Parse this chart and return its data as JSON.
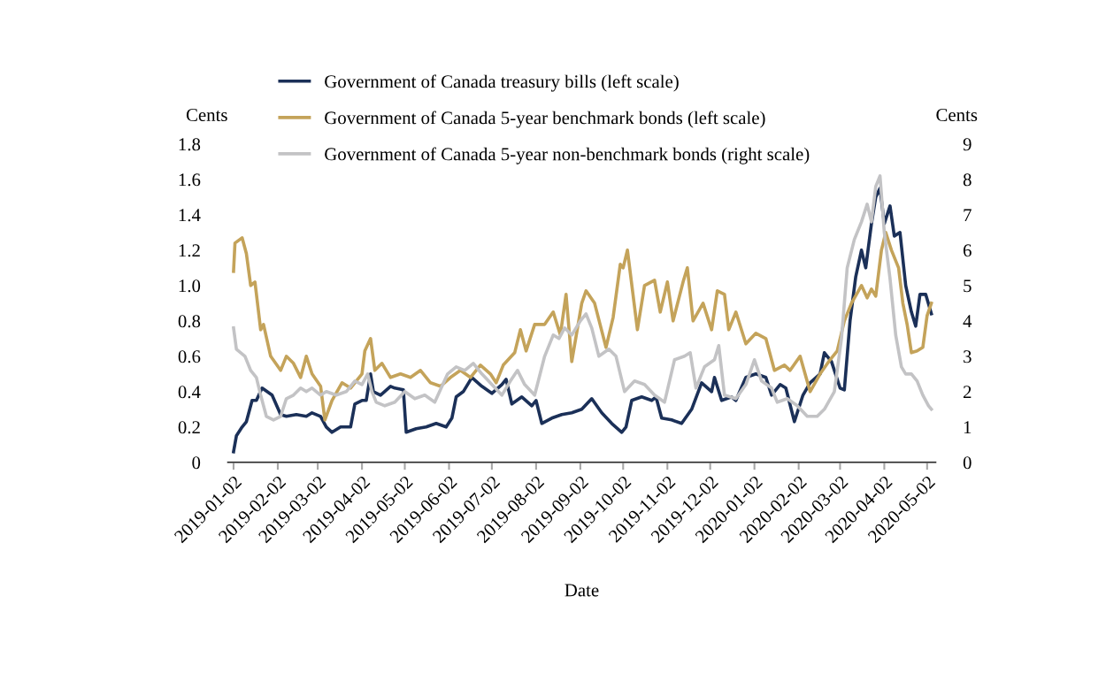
{
  "chart_data": {
    "type": "line",
    "xlabel": "Date",
    "ylabel": "Cents",
    "y2label": "Cents",
    "xlim": [
      "2018-12-29",
      "2020-05-08"
    ],
    "xticks": [
      "2019-01-02",
      "2019-02-02",
      "2019-03-02",
      "2019-04-02",
      "2019-05-02",
      "2019-06-02",
      "2019-07-02",
      "2019-08-02",
      "2019-09-02",
      "2019-10-02",
      "2019-11-02",
      "2019-12-02",
      "2020-01-02",
      "2020-02-02",
      "2020-03-02",
      "2020-04-02",
      "2020-05-02"
    ],
    "ylim": [
      0,
      1.8
    ],
    "yticks": [
      0,
      {
        "value": 0.2,
        "label": "0.2"
      },
      {
        "value": 0.4,
        "label": "0.4"
      },
      {
        "value": 0.6,
        "label": "0.6"
      },
      {
        "value": 0.8,
        "label": "0.8"
      },
      {
        "value": 1.0,
        "label": "1.0"
      },
      {
        "value": 1.2,
        "label": "1.2"
      },
      {
        "value": 1.4,
        "label": "1.4"
      },
      {
        "value": 1.6,
        "label": "1.6"
      },
      {
        "value": 1.8,
        "label": "1.8"
      }
    ],
    "y2lim": [
      0,
      9
    ],
    "y2ticks": [
      0,
      1,
      2,
      3,
      4,
      5,
      6,
      7,
      8,
      9
    ],
    "grid": false,
    "legend": "top",
    "marker": "none",
    "line_style": "solid",
    "series": [
      {
        "name": "Government of Canada treasury bills (left scale)",
        "color": "#1b3058",
        "x": [
          "2019-01-02",
          "2019-01-04",
          "2019-01-08",
          "2019-01-11",
          "2019-01-15",
          "2019-01-18",
          "2019-01-22",
          "2019-01-29",
          "2019-02-04",
          "2019-02-08",
          "2019-02-15",
          "2019-02-22",
          "2019-02-26",
          "2019-03-04",
          "2019-03-08",
          "2019-03-12",
          "2019-03-18",
          "2019-03-25",
          "2019-03-28",
          "2019-04-02",
          "2019-04-05",
          "2019-04-08",
          "2019-04-10",
          "2019-04-15",
          "2019-04-22",
          "2019-04-25",
          "2019-05-01",
          "2019-05-03",
          "2019-05-10",
          "2019-05-17",
          "2019-05-24",
          "2019-05-31",
          "2019-06-04",
          "2019-06-07",
          "2019-06-12",
          "2019-06-18",
          "2019-06-25",
          "2019-07-02",
          "2019-07-09",
          "2019-07-12",
          "2019-07-16",
          "2019-07-23",
          "2019-07-30",
          "2019-08-02",
          "2019-08-06",
          "2019-08-13",
          "2019-08-20",
          "2019-08-27",
          "2019-09-03",
          "2019-09-10",
          "2019-09-17",
          "2019-09-24",
          "2019-10-01",
          "2019-10-04",
          "2019-10-08",
          "2019-10-15",
          "2019-10-22",
          "2019-10-25",
          "2019-10-29",
          "2019-11-05",
          "2019-11-12",
          "2019-11-19",
          "2019-11-26",
          "2019-12-03",
          "2019-12-05",
          "2019-12-10",
          "2019-12-17",
          "2019-12-20",
          "2019-12-27",
          "2020-01-03",
          "2020-01-10",
          "2020-01-14",
          "2020-01-20",
          "2020-01-24",
          "2020-01-30",
          "2020-02-05",
          "2020-02-10",
          "2020-02-17",
          "2020-02-20",
          "2020-02-25",
          "2020-03-02",
          "2020-03-05",
          "2020-03-09",
          "2020-03-13",
          "2020-03-17",
          "2020-03-20",
          "2020-03-24",
          "2020-03-27",
          "2020-03-30",
          "2020-04-02",
          "2020-04-06",
          "2020-04-09",
          "2020-04-13",
          "2020-04-17",
          "2020-04-21",
          "2020-04-24",
          "2020-04-27",
          "2020-05-01",
          "2020-05-05"
        ],
        "values": [
          0.06,
          0.15,
          0.2,
          0.23,
          0.35,
          0.35,
          0.42,
          0.38,
          0.27,
          0.26,
          0.27,
          0.26,
          0.28,
          0.26,
          0.2,
          0.17,
          0.2,
          0.2,
          0.33,
          0.35,
          0.35,
          0.5,
          0.4,
          0.38,
          0.43,
          0.42,
          0.41,
          0.17,
          0.19,
          0.2,
          0.22,
          0.2,
          0.25,
          0.37,
          0.4,
          0.48,
          0.43,
          0.39,
          0.44,
          0.47,
          0.33,
          0.37,
          0.32,
          0.35,
          0.22,
          0.25,
          0.27,
          0.28,
          0.3,
          0.36,
          0.28,
          0.22,
          0.17,
          0.2,
          0.35,
          0.37,
          0.35,
          0.37,
          0.25,
          0.24,
          0.22,
          0.3,
          0.45,
          0.4,
          0.48,
          0.35,
          0.37,
          0.35,
          0.48,
          0.5,
          0.48,
          0.38,
          0.44,
          0.42,
          0.23,
          0.38,
          0.45,
          0.5,
          0.62,
          0.57,
          0.42,
          0.41,
          0.8,
          1.05,
          1.2,
          1.1,
          1.35,
          1.5,
          1.55,
          1.35,
          1.45,
          1.28,
          1.3,
          1.0,
          0.85,
          0.77,
          0.95,
          0.95,
          0.84
        ]
      },
      {
        "name": "Government of Canada 5-year benchmark bonds (left scale)",
        "color": "#c4a35a",
        "x": [
          "2019-01-02",
          "2019-01-03",
          "2019-01-08",
          "2019-01-11",
          "2019-01-14",
          "2019-01-17",
          "2019-01-21",
          "2019-01-23",
          "2019-01-28",
          "2019-02-04",
          "2019-02-08",
          "2019-02-13",
          "2019-02-18",
          "2019-02-22",
          "2019-02-26",
          "2019-03-04",
          "2019-03-07",
          "2019-03-12",
          "2019-03-19",
          "2019-03-25",
          "2019-04-02",
          "2019-04-04",
          "2019-04-08",
          "2019-04-11",
          "2019-04-16",
          "2019-04-22",
          "2019-04-29",
          "2019-05-06",
          "2019-05-13",
          "2019-05-20",
          "2019-05-27",
          "2019-06-03",
          "2019-06-10",
          "2019-06-17",
          "2019-06-24",
          "2019-07-01",
          "2019-07-05",
          "2019-07-10",
          "2019-07-18",
          "2019-07-22",
          "2019-07-26",
          "2019-08-01",
          "2019-08-08",
          "2019-08-14",
          "2019-08-19",
          "2019-08-23",
          "2019-08-27",
          "2019-09-03",
          "2019-09-06",
          "2019-09-12",
          "2019-09-20",
          "2019-09-25",
          "2019-09-30",
          "2019-10-02",
          "2019-10-05",
          "2019-10-12",
          "2019-10-17",
          "2019-10-24",
          "2019-10-28",
          "2019-11-02",
          "2019-11-06",
          "2019-11-13",
          "2019-11-16",
          "2019-11-20",
          "2019-11-27",
          "2019-12-03",
          "2019-12-07",
          "2019-12-12",
          "2019-12-15",
          "2019-12-20",
          "2019-12-27",
          "2020-01-03",
          "2020-01-10",
          "2020-01-16",
          "2020-01-23",
          "2020-01-27",
          "2020-02-03",
          "2020-02-10",
          "2020-02-17",
          "2020-02-24",
          "2020-02-29",
          "2020-03-05",
          "2020-03-10",
          "2020-03-17",
          "2020-03-21",
          "2020-03-24",
          "2020-03-27",
          "2020-03-31",
          "2020-04-03",
          "2020-04-07",
          "2020-04-12",
          "2020-04-15",
          "2020-04-18",
          "2020-04-21",
          "2020-04-25",
          "2020-04-29",
          "2020-05-02",
          "2020-05-05"
        ],
        "values": [
          1.08,
          1.24,
          1.27,
          1.18,
          1.0,
          1.02,
          0.75,
          0.78,
          0.6,
          0.52,
          0.6,
          0.56,
          0.48,
          0.6,
          0.5,
          0.43,
          0.24,
          0.35,
          0.45,
          0.42,
          0.5,
          0.63,
          0.7,
          0.52,
          0.56,
          0.48,
          0.5,
          0.48,
          0.52,
          0.45,
          0.43,
          0.48,
          0.52,
          0.48,
          0.55,
          0.5,
          0.45,
          0.55,
          0.62,
          0.75,
          0.63,
          0.78,
          0.78,
          0.85,
          0.72,
          0.95,
          0.57,
          0.9,
          0.97,
          0.9,
          0.65,
          0.82,
          1.12,
          1.1,
          1.2,
          0.75,
          1.0,
          1.03,
          0.85,
          1.02,
          0.8,
          1.02,
          1.1,
          0.8,
          0.9,
          0.75,
          0.97,
          0.95,
          0.75,
          0.85,
          0.67,
          0.73,
          0.7,
          0.52,
          0.55,
          0.52,
          0.6,
          0.4,
          0.5,
          0.58,
          0.63,
          0.8,
          0.9,
          1.0,
          0.93,
          0.98,
          0.94,
          1.2,
          1.3,
          1.2,
          1.1,
          0.9,
          0.78,
          0.62,
          0.63,
          0.65,
          0.83,
          0.9
        ]
      },
      {
        "name": "Government of Canada 5-year non-benchmark bonds (right scale)",
        "color": "#c3c3c5",
        "axis": "y2",
        "x": [
          "2019-01-02",
          "2019-01-04",
          "2019-01-10",
          "2019-01-14",
          "2019-01-18",
          "2019-01-21",
          "2019-01-25",
          "2019-01-30",
          "2019-02-04",
          "2019-02-08",
          "2019-02-13",
          "2019-02-18",
          "2019-02-22",
          "2019-02-26",
          "2019-03-04",
          "2019-03-08",
          "2019-03-15",
          "2019-03-22",
          "2019-03-28",
          "2019-04-02",
          "2019-04-06",
          "2019-04-09",
          "2019-04-12",
          "2019-04-18",
          "2019-04-25",
          "2019-05-02",
          "2019-05-09",
          "2019-05-16",
          "2019-05-23",
          "2019-06-01",
          "2019-06-07",
          "2019-06-13",
          "2019-06-19",
          "2019-06-25",
          "2019-07-02",
          "2019-07-09",
          "2019-07-15",
          "2019-07-20",
          "2019-07-25",
          "2019-08-01",
          "2019-08-08",
          "2019-08-14",
          "2019-08-18",
          "2019-08-22",
          "2019-08-27",
          "2019-09-02",
          "2019-09-06",
          "2019-09-10",
          "2019-09-15",
          "2019-09-22",
          "2019-09-27",
          "2019-10-03",
          "2019-10-10",
          "2019-10-17",
          "2019-10-24",
          "2019-10-31",
          "2019-11-07",
          "2019-11-14",
          "2019-11-18",
          "2019-11-22",
          "2019-11-28",
          "2019-12-05",
          "2019-12-08",
          "2019-12-12",
          "2019-12-20",
          "2019-12-27",
          "2020-01-02",
          "2020-01-07",
          "2020-01-14",
          "2020-01-18",
          "2020-01-25",
          "2020-02-01",
          "2020-02-08",
          "2020-02-15",
          "2020-02-20",
          "2020-02-27",
          "2020-03-03",
          "2020-03-07",
          "2020-03-12",
          "2020-03-17",
          "2020-03-21",
          "2020-03-24",
          "2020-03-27",
          "2020-03-30",
          "2020-04-02",
          "2020-04-06",
          "2020-04-10",
          "2020-04-14",
          "2020-04-17",
          "2020-04-21",
          "2020-04-25",
          "2020-04-29",
          "2020-05-03",
          "2020-05-05"
        ],
        "values": [
          3.8,
          3.2,
          3.0,
          2.6,
          2.4,
          1.9,
          1.3,
          1.2,
          1.3,
          1.8,
          1.9,
          2.1,
          2.0,
          2.1,
          1.9,
          2.0,
          1.9,
          2.0,
          2.3,
          2.2,
          2.5,
          2.0,
          1.7,
          1.6,
          1.7,
          2.0,
          1.8,
          1.9,
          1.7,
          2.5,
          2.7,
          2.6,
          2.8,
          2.5,
          2.2,
          1.9,
          2.3,
          2.6,
          2.2,
          1.9,
          3.0,
          3.6,
          3.5,
          3.8,
          3.6,
          4.0,
          4.2,
          3.8,
          3.0,
          3.2,
          3.0,
          2.0,
          2.3,
          2.2,
          1.9,
          1.7,
          2.9,
          3.0,
          3.1,
          2.1,
          2.7,
          2.9,
          3.3,
          1.9,
          1.8,
          2.2,
          2.9,
          2.3,
          2.1,
          1.7,
          1.8,
          1.6,
          1.3,
          1.3,
          1.5,
          2.0,
          3.5,
          5.5,
          6.3,
          6.8,
          7.3,
          6.8,
          7.8,
          8.1,
          6.5,
          5.2,
          3.6,
          2.7,
          2.5,
          2.5,
          2.3,
          1.9,
          1.6,
          1.5
        ]
      }
    ]
  }
}
